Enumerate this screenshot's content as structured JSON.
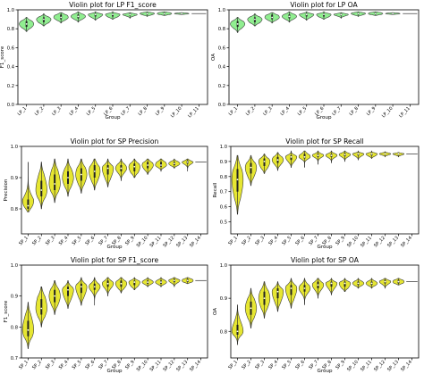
{
  "chart_data": [
    {
      "type": "violin",
      "title": "Violin plot for LP F1_score",
      "xlabel": "Group",
      "ylabel": "F1_score",
      "ylim": [
        0.0,
        1.0
      ],
      "yticks": [
        0.0,
        0.2,
        0.4,
        0.6,
        0.8,
        1.0
      ],
      "ytick_labels": [
        "0.0",
        "0.2",
        "0.4",
        "0.6",
        "0.8",
        "1.0"
      ],
      "color": "#90ee90",
      "categories": [
        "LP_1",
        "LP_2",
        "LP_3",
        "LP_4",
        "LP_5",
        "LP_6",
        "LP_7",
        "LP_8",
        "LP_9",
        "LP_10",
        "LP_11"
      ],
      "violins": [
        {
          "min": 0.77,
          "q1": 0.82,
          "median": 0.85,
          "q3": 0.88,
          "max": 0.92
        },
        {
          "min": 0.83,
          "q1": 0.87,
          "median": 0.9,
          "q3": 0.92,
          "max": 0.96
        },
        {
          "min": 0.86,
          "q1": 0.9,
          "median": 0.92,
          "q3": 0.95,
          "max": 0.97
        },
        {
          "min": 0.87,
          "q1": 0.91,
          "median": 0.93,
          "q3": 0.95,
          "max": 0.98
        },
        {
          "min": 0.89,
          "q1": 0.93,
          "median": 0.95,
          "q3": 0.96,
          "max": 0.98
        },
        {
          "min": 0.9,
          "q1": 0.93,
          "median": 0.95,
          "q3": 0.96,
          "max": 0.98
        },
        {
          "min": 0.91,
          "q1": 0.94,
          "median": 0.95,
          "q3": 0.96,
          "max": 0.97
        },
        {
          "min": 0.93,
          "q1": 0.95,
          "median": 0.96,
          "q3": 0.97,
          "max": 0.98
        },
        {
          "min": 0.94,
          "q1": 0.95,
          "median": 0.96,
          "q3": 0.97,
          "max": 0.98
        },
        {
          "min": 0.95,
          "q1": 0.955,
          "median": 0.96,
          "q3": 0.965,
          "max": 0.97
        },
        {
          "min": 0.96,
          "q1": 0.96,
          "median": 0.96,
          "q3": 0.96,
          "max": 0.96
        }
      ]
    },
    {
      "type": "violin",
      "title": "Violin plot for LP OA",
      "xlabel": "Group",
      "ylabel": "OA",
      "ylim": [
        0.0,
        1.0
      ],
      "yticks": [
        0.0,
        0.2,
        0.4,
        0.6,
        0.8,
        1.0
      ],
      "ytick_labels": [
        "0.0",
        "0.2",
        "0.4",
        "0.6",
        "0.8",
        "1.0"
      ],
      "color": "#90ee90",
      "categories": [
        "LP_1",
        "LP_2",
        "LP_3",
        "LP_4",
        "LP_5",
        "LP_6",
        "LP_7",
        "LP_8",
        "LP_9",
        "LP_10",
        "LP_11"
      ],
      "violins": [
        {
          "min": 0.76,
          "q1": 0.82,
          "median": 0.85,
          "q3": 0.88,
          "max": 0.92
        },
        {
          "min": 0.83,
          "q1": 0.87,
          "median": 0.9,
          "q3": 0.92,
          "max": 0.96
        },
        {
          "min": 0.86,
          "q1": 0.9,
          "median": 0.92,
          "q3": 0.95,
          "max": 0.97
        },
        {
          "min": 0.87,
          "q1": 0.91,
          "median": 0.93,
          "q3": 0.95,
          "max": 0.98
        },
        {
          "min": 0.89,
          "q1": 0.93,
          "median": 0.95,
          "q3": 0.96,
          "max": 0.98
        },
        {
          "min": 0.9,
          "q1": 0.93,
          "median": 0.95,
          "q3": 0.96,
          "max": 0.98
        },
        {
          "min": 0.91,
          "q1": 0.94,
          "median": 0.95,
          "q3": 0.96,
          "max": 0.97
        },
        {
          "min": 0.93,
          "q1": 0.95,
          "median": 0.96,
          "q3": 0.97,
          "max": 0.98
        },
        {
          "min": 0.94,
          "q1": 0.95,
          "median": 0.96,
          "q3": 0.97,
          "max": 0.98
        },
        {
          "min": 0.95,
          "q1": 0.955,
          "median": 0.96,
          "q3": 0.965,
          "max": 0.97
        },
        {
          "min": 0.96,
          "q1": 0.96,
          "median": 0.96,
          "q3": 0.96,
          "max": 0.96
        }
      ]
    },
    {
      "type": "violin",
      "title": "Violin plot for SP Precision",
      "xlabel": "Group",
      "ylabel": "Precision",
      "ylim": [
        0.72,
        1.0
      ],
      "yticks": [
        0.7,
        0.8,
        0.9,
        1.0
      ],
      "ytick_labels": [
        "0.7",
        "0.8",
        "0.9",
        "1.0"
      ],
      "color": "#e6e632",
      "categories": [
        "SP_1",
        "SP_2",
        "SP_3",
        "SP_4",
        "SP_5",
        "SP_6",
        "SP_7",
        "SP_8",
        "SP_9",
        "SP_10",
        "SP_11",
        "SP_12",
        "SP_13",
        "SP_14"
      ],
      "violins": [
        {
          "min": 0.79,
          "q1": 0.8,
          "median": 0.81,
          "q3": 0.83,
          "max": 0.95
        },
        {
          "min": 0.8,
          "q1": 0.84,
          "median": 0.86,
          "q3": 0.89,
          "max": 0.95
        },
        {
          "min": 0.82,
          "q1": 0.86,
          "median": 0.88,
          "q3": 0.91,
          "max": 0.96
        },
        {
          "min": 0.84,
          "q1": 0.88,
          "median": 0.9,
          "q3": 0.92,
          "max": 0.96
        },
        {
          "min": 0.85,
          "q1": 0.89,
          "median": 0.91,
          "q3": 0.93,
          "max": 0.96
        },
        {
          "min": 0.86,
          "q1": 0.9,
          "median": 0.92,
          "q3": 0.94,
          "max": 0.96
        },
        {
          "min": 0.87,
          "q1": 0.91,
          "median": 0.93,
          "q3": 0.94,
          "max": 0.96
        },
        {
          "min": 0.89,
          "q1": 0.92,
          "median": 0.93,
          "q3": 0.94,
          "max": 0.96
        },
        {
          "min": 0.9,
          "q1": 0.92,
          "median": 0.935,
          "q3": 0.945,
          "max": 0.96
        },
        {
          "min": 0.91,
          "q1": 0.93,
          "median": 0.94,
          "q3": 0.95,
          "max": 0.96
        },
        {
          "min": 0.92,
          "q1": 0.935,
          "median": 0.94,
          "q3": 0.95,
          "max": 0.96
        },
        {
          "min": 0.93,
          "q1": 0.94,
          "median": 0.945,
          "q3": 0.95,
          "max": 0.96
        },
        {
          "min": 0.92,
          "q1": 0.945,
          "median": 0.95,
          "q3": 0.955,
          "max": 0.96
        },
        {
          "min": 0.95,
          "q1": 0.95,
          "median": 0.95,
          "q3": 0.95,
          "max": 0.95
        }
      ]
    },
    {
      "type": "violin",
      "title": "Violin plot for SP Recall",
      "xlabel": "Group",
      "ylabel": "Recall",
      "ylim": [
        0.42,
        1.0
      ],
      "yticks": [
        0.5,
        0.6,
        0.7,
        0.8,
        0.9,
        1.0
      ],
      "ytick_labels": [
        "0.5",
        "0.6",
        "0.7",
        "0.8",
        "0.9",
        "1.0"
      ],
      "color": "#e6e632",
      "categories": [
        "SP_1",
        "SP_2",
        "SP_3",
        "SP_4",
        "SP_5",
        "SP_6",
        "SP_7",
        "SP_8",
        "SP_9",
        "SP_10",
        "SP_11",
        "SP_12",
        "SP_13",
        "SP_14"
      ],
      "violins": [
        {
          "min": 0.55,
          "q1": 0.7,
          "median": 0.78,
          "q3": 0.85,
          "max": 0.94
        },
        {
          "min": 0.74,
          "q1": 0.82,
          "median": 0.86,
          "q3": 0.89,
          "max": 0.94
        },
        {
          "min": 0.82,
          "q1": 0.87,
          "median": 0.9,
          "q3": 0.92,
          "max": 0.95
        },
        {
          "min": 0.84,
          "q1": 0.89,
          "median": 0.91,
          "q3": 0.93,
          "max": 0.96
        },
        {
          "min": 0.86,
          "q1": 0.91,
          "median": 0.93,
          "q3": 0.94,
          "max": 0.97
        },
        {
          "min": 0.86,
          "q1": 0.92,
          "median": 0.93,
          "q3": 0.95,
          "max": 0.97
        },
        {
          "min": 0.88,
          "q1": 0.93,
          "median": 0.94,
          "q3": 0.95,
          "max": 0.97
        },
        {
          "min": 0.89,
          "q1": 0.93,
          "median": 0.94,
          "q3": 0.95,
          "max": 0.97
        },
        {
          "min": 0.9,
          "q1": 0.935,
          "median": 0.945,
          "q3": 0.955,
          "max": 0.97
        },
        {
          "min": 0.91,
          "q1": 0.94,
          "median": 0.95,
          "q3": 0.955,
          "max": 0.97
        },
        {
          "min": 0.92,
          "q1": 0.94,
          "median": 0.95,
          "q3": 0.955,
          "max": 0.97
        },
        {
          "min": 0.93,
          "q1": 0.945,
          "median": 0.95,
          "q3": 0.955,
          "max": 0.965
        },
        {
          "min": 0.93,
          "q1": 0.945,
          "median": 0.95,
          "q3": 0.955,
          "max": 0.96
        },
        {
          "min": 0.95,
          "q1": 0.95,
          "median": 0.95,
          "q3": 0.95,
          "max": 0.95
        }
      ]
    },
    {
      "type": "violin",
      "title": "Violin plot for SP F1_score",
      "xlabel": "Group",
      "ylabel": "F1_score",
      "ylim": [
        0.7,
        1.0
      ],
      "yticks": [
        0.7,
        0.8,
        0.9,
        1.0
      ],
      "ytick_labels": [
        "0.7",
        "0.8",
        "0.9",
        "1.0"
      ],
      "color": "#e6e632",
      "categories": [
        "SP_1",
        "SP_2",
        "SP_3",
        "SP_4",
        "SP_5",
        "SP_6",
        "SP_7",
        "SP_8",
        "SP_9",
        "SP_10",
        "SP_11",
        "SP_12",
        "SP_13",
        "SP_14"
      ],
      "violins": [
        {
          "min": 0.73,
          "q1": 0.77,
          "median": 0.79,
          "q3": 0.82,
          "max": 0.88
        },
        {
          "min": 0.8,
          "q1": 0.84,
          "median": 0.86,
          "q3": 0.89,
          "max": 0.93
        },
        {
          "min": 0.84,
          "q1": 0.88,
          "median": 0.9,
          "q3": 0.92,
          "max": 0.95
        },
        {
          "min": 0.86,
          "q1": 0.9,
          "median": 0.92,
          "q3": 0.93,
          "max": 0.95
        },
        {
          "min": 0.87,
          "q1": 0.91,
          "median": 0.93,
          "q3": 0.94,
          "max": 0.96
        },
        {
          "min": 0.87,
          "q1": 0.92,
          "median": 0.93,
          "q3": 0.94,
          "max": 0.96
        },
        {
          "min": 0.9,
          "q1": 0.93,
          "median": 0.94,
          "q3": 0.95,
          "max": 0.96
        },
        {
          "min": 0.91,
          "q1": 0.93,
          "median": 0.94,
          "q3": 0.95,
          "max": 0.96
        },
        {
          "min": 0.92,
          "q1": 0.935,
          "median": 0.945,
          "q3": 0.95,
          "max": 0.96
        },
        {
          "min": 0.93,
          "q1": 0.94,
          "median": 0.945,
          "q3": 0.95,
          "max": 0.96
        },
        {
          "min": 0.93,
          "q1": 0.94,
          "median": 0.945,
          "q3": 0.95,
          "max": 0.96
        },
        {
          "min": 0.93,
          "q1": 0.945,
          "median": 0.95,
          "q3": 0.955,
          "max": 0.96
        },
        {
          "min": 0.94,
          "q1": 0.945,
          "median": 0.95,
          "q3": 0.955,
          "max": 0.96
        },
        {
          "min": 0.95,
          "q1": 0.95,
          "median": 0.95,
          "q3": 0.95,
          "max": 0.95
        }
      ]
    },
    {
      "type": "violin",
      "title": "Violin plot for SP OA",
      "xlabel": "Group",
      "ylabel": "OA",
      "ylim": [
        0.72,
        1.0
      ],
      "yticks": [
        0.8,
        0.9,
        1.0
      ],
      "ytick_labels": [
        "0.8",
        "0.9",
        "1.0"
      ],
      "color": "#e6e632",
      "categories": [
        "SP_1",
        "SP_2",
        "SP_3",
        "SP_4",
        "SP_5",
        "SP_6",
        "SP_7",
        "SP_8",
        "SP_9",
        "SP_10",
        "SP_11",
        "SP_12",
        "SP_13",
        "SP_14"
      ],
      "violins": [
        {
          "min": 0.76,
          "q1": 0.79,
          "median": 0.8,
          "q3": 0.82,
          "max": 0.88
        },
        {
          "min": 0.81,
          "q1": 0.85,
          "median": 0.87,
          "q3": 0.89,
          "max": 0.93
        },
        {
          "min": 0.84,
          "q1": 0.88,
          "median": 0.9,
          "q3": 0.92,
          "max": 0.95
        },
        {
          "min": 0.86,
          "q1": 0.9,
          "median": 0.92,
          "q3": 0.93,
          "max": 0.95
        },
        {
          "min": 0.87,
          "q1": 0.91,
          "median": 0.93,
          "q3": 0.94,
          "max": 0.96
        },
        {
          "min": 0.88,
          "q1": 0.92,
          "median": 0.93,
          "q3": 0.94,
          "max": 0.96
        },
        {
          "min": 0.9,
          "q1": 0.93,
          "median": 0.94,
          "q3": 0.95,
          "max": 0.96
        },
        {
          "min": 0.91,
          "q1": 0.935,
          "median": 0.945,
          "q3": 0.95,
          "max": 0.96
        },
        {
          "min": 0.92,
          "q1": 0.935,
          "median": 0.945,
          "q3": 0.95,
          "max": 0.96
        },
        {
          "min": 0.93,
          "q1": 0.94,
          "median": 0.945,
          "q3": 0.95,
          "max": 0.96
        },
        {
          "min": 0.93,
          "q1": 0.94,
          "median": 0.945,
          "q3": 0.95,
          "max": 0.96
        },
        {
          "min": 0.93,
          "q1": 0.945,
          "median": 0.95,
          "q3": 0.955,
          "max": 0.96
        },
        {
          "min": 0.94,
          "q1": 0.945,
          "median": 0.95,
          "q3": 0.955,
          "max": 0.96
        },
        {
          "min": 0.95,
          "q1": 0.95,
          "median": 0.95,
          "q3": 0.95,
          "max": 0.95
        }
      ]
    }
  ]
}
